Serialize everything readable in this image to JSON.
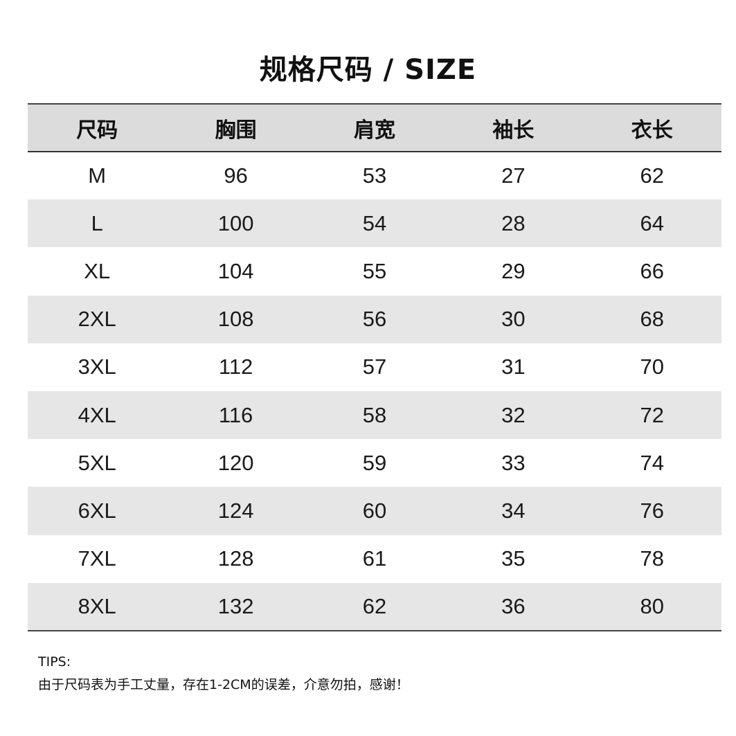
{
  "title": "规格尺码 / SIZE",
  "table": {
    "headers": [
      "尺码",
      "胸围",
      "肩宽",
      "袖长",
      "衣长"
    ],
    "rows": [
      [
        "M",
        "96",
        "53",
        "27",
        "62"
      ],
      [
        "L",
        "100",
        "54",
        "28",
        "64"
      ],
      [
        "XL",
        "104",
        "55",
        "29",
        "66"
      ],
      [
        "2XL",
        "108",
        "56",
        "30",
        "68"
      ],
      [
        "3XL",
        "112",
        "57",
        "31",
        "70"
      ],
      [
        "4XL",
        "116",
        "58",
        "32",
        "72"
      ],
      [
        "5XL",
        "120",
        "59",
        "33",
        "74"
      ],
      [
        "6XL",
        "124",
        "60",
        "34",
        "76"
      ],
      [
        "7XL",
        "128",
        "61",
        "35",
        "78"
      ],
      [
        "8XL",
        "132",
        "62",
        "36",
        "80"
      ]
    ]
  },
  "tips": {
    "label": "TIPS:",
    "text": "由于尺码表为手工丈量，存在1-2CM的误差，介意勿拍，感谢！"
  },
  "colors": {
    "header_bg": "#dcdcdc",
    "stripe_bg": "#e6e6e6",
    "border": "#444444"
  }
}
